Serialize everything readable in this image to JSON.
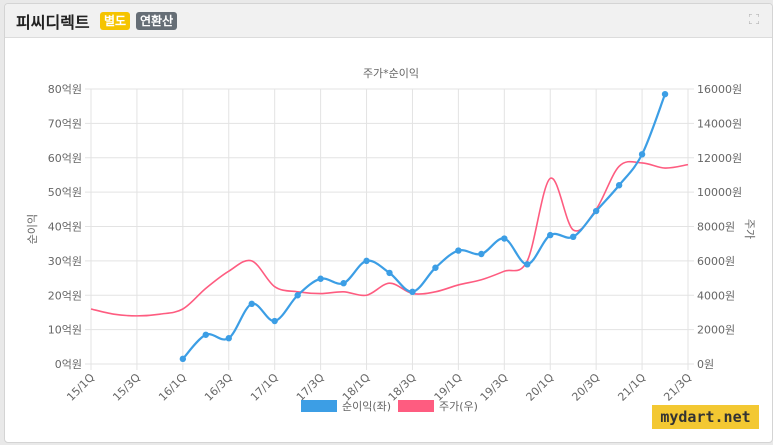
{
  "header": {
    "company_name": "피씨디렉트",
    "badge_separate": "별도",
    "badge_consolidated": "연환산",
    "expand_icon": "expand-icon"
  },
  "watermark": "mydart.net",
  "colors": {
    "profit_series": "#3c9ee5",
    "price_series": "#fe5c80",
    "badge_separate": "#f5c400",
    "badge_consolidated": "#666e76"
  },
  "chart_data": {
    "type": "line",
    "title": "주가*순이익",
    "ylabel_left": "순이익",
    "ylabel_right": "주가",
    "ylim_left": [
      0,
      80
    ],
    "ylim_right": [
      0,
      16000
    ],
    "yticks_left": [
      "0억원",
      "10억원",
      "20억원",
      "30억원",
      "40억원",
      "50억원",
      "60억원",
      "70억원",
      "80억원"
    ],
    "yticks_right": [
      "0원",
      "2000원",
      "4000원",
      "6000원",
      "8000원",
      "10000원",
      "12000원",
      "14000원",
      "16000원"
    ],
    "x_tick_labels": [
      "15/1Q",
      "15/3Q",
      "16/1Q",
      "16/3Q",
      "17/1Q",
      "17/3Q",
      "18/1Q",
      "18/3Q",
      "19/1Q",
      "19/3Q",
      "20/1Q",
      "20/3Q",
      "21/1Q",
      "21/3Q"
    ],
    "grid": true,
    "legend_position": "bottom",
    "series": [
      {
        "name": "순이익(좌)",
        "color": "#3c9ee5",
        "axis": "left",
        "quarters": [
          "16/1Q",
          "16/2Q",
          "16/3Q",
          "16/4Q",
          "17/1Q",
          "17/2Q",
          "17/3Q",
          "17/4Q",
          "18/1Q",
          "18/2Q",
          "18/3Q",
          "18/4Q",
          "19/1Q",
          "19/2Q",
          "19/3Q",
          "19/4Q",
          "20/1Q",
          "20/2Q",
          "20/3Q",
          "20/4Q",
          "21/1Q",
          "21/2Q"
        ],
        "values": [
          1.5,
          8.5,
          7.5,
          17.5,
          12.5,
          20.0,
          24.8,
          23.5,
          30.0,
          26.5,
          21.0,
          28.0,
          33.0,
          32.0,
          36.5,
          29.0,
          37.5,
          37.0,
          44.5,
          52.0,
          61.0,
          78.5
        ]
      },
      {
        "name": "주가(우)",
        "color": "#fe5c80",
        "axis": "right",
        "quarters": [
          "15/1Q",
          "15/2Q",
          "15/3Q",
          "15/4Q",
          "16/1Q",
          "16/2Q",
          "16/3Q",
          "16/4Q",
          "17/1Q",
          "17/2Q",
          "17/3Q",
          "17/4Q",
          "18/1Q",
          "18/2Q",
          "18/3Q",
          "18/4Q",
          "19/1Q",
          "19/2Q",
          "19/3Q",
          "19/4Q",
          "20/1Q",
          "20/2Q",
          "20/3Q",
          "20/4Q",
          "21/1Q",
          "21/2Q",
          "21/3Q"
        ],
        "values": [
          3200,
          2900,
          2800,
          2900,
          3200,
          4400,
          5400,
          6000,
          4500,
          4200,
          4100,
          4200,
          4000,
          4700,
          4100,
          4200,
          4600,
          4900,
          5400,
          6000,
          10800,
          7800,
          9000,
          11500,
          11700,
          11400,
          11600
        ]
      }
    ]
  }
}
